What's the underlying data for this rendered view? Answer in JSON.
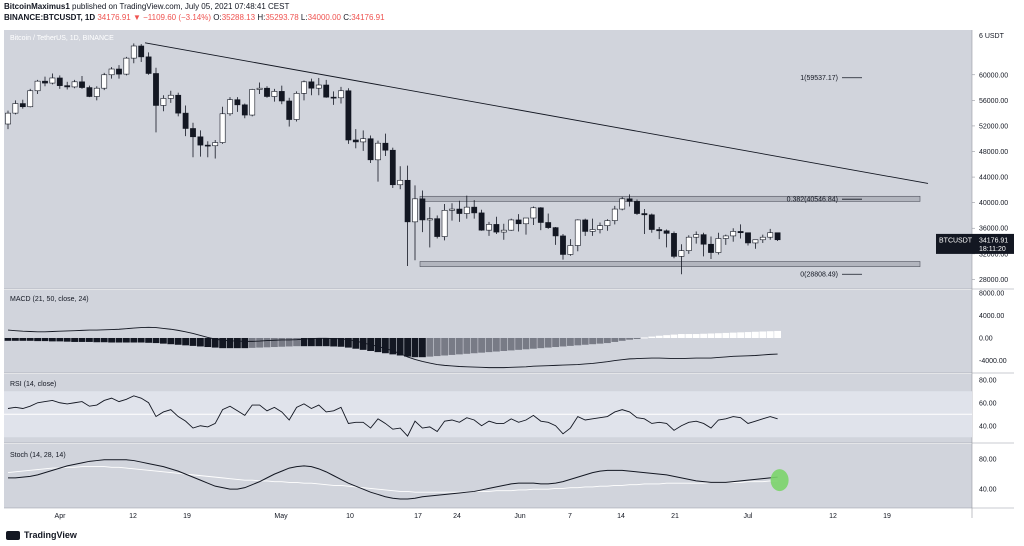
{
  "header": {
    "line1_user": "BitcoinMaximus1",
    "line1_rest": "published on TradingView.com, July 05, 2021 07:48:41 CEST",
    "line2_symbol": "BINANCE:BTCUSDT, 1D",
    "line2_price": "34176.91",
    "line2_change": "▼ −1109.60 (−3.14%)",
    "line2_ohlc_o": "O:",
    "line2_o": "35288.13",
    "line2_ohlc_h": "H:",
    "line2_h": "35293.78",
    "line2_ohlc_l": "L:",
    "line2_l": "34000.00",
    "line2_ohlc_c": "C:",
    "line2_c": "34176.91"
  },
  "footer": {
    "brand": "TradingView"
  },
  "chart_data": {
    "type": "candlestick",
    "title": "Bitcoin / TetherUS, 1D, BINANCE",
    "price_axis_unit_label": "6 USDT",
    "price_ticks": [
      60000,
      56000,
      52000,
      48000,
      44000,
      40000,
      36000,
      32000,
      28000
    ],
    "price_range": [
      26500,
      67000
    ],
    "x_labels": [
      "Apr",
      "12",
      "19",
      "May",
      "10",
      "17",
      "24",
      "Jun",
      "7",
      "14",
      "21",
      "Jul",
      "12",
      "19"
    ],
    "last_price_label": {
      "symbol": "BTCUSDT",
      "price": "34176.91",
      "timer": "18:11:20"
    },
    "fib_levels": [
      {
        "label": "1(59537.17)",
        "value": 59537.17
      },
      {
        "label": "0.382(40546.84)",
        "value": 40546.84
      },
      {
        "label": "0(28808.49)",
        "value": 28808.49
      }
    ],
    "resistance_zone": [
      40200,
      41000
    ],
    "support_zone": [
      30000,
      30800
    ],
    "descending_trendline": [
      [
        65000
      ],
      [
        43000
      ]
    ],
    "candles": [
      [
        52300,
        54400,
        51500,
        54000
      ],
      [
        54000,
        56000,
        53800,
        55500
      ],
      [
        55500,
        56100,
        54700,
        55000
      ],
      [
        55000,
        57800,
        54900,
        57500
      ],
      [
        57500,
        59200,
        57000,
        59000
      ],
      [
        59000,
        59700,
        58200,
        58700
      ],
      [
        58700,
        60200,
        58500,
        59500
      ],
      [
        59500,
        59900,
        57800,
        58300
      ],
      [
        58300,
        58900,
        57700,
        58100
      ],
      [
        58100,
        59200,
        57900,
        58900
      ],
      [
        58900,
        59800,
        57800,
        58000
      ],
      [
        58000,
        58300,
        56500,
        56600
      ],
      [
        56600,
        58200,
        56000,
        57900
      ],
      [
        57900,
        60300,
        57600,
        60000
      ],
      [
        60000,
        61200,
        59400,
        60900
      ],
      [
        60900,
        61500,
        59400,
        60100
      ],
      [
        60100,
        62800,
        59900,
        62600
      ],
      [
        62600,
        64900,
        61800,
        64500
      ],
      [
        64500,
        64800,
        62000,
        62800
      ],
      [
        62800,
        63500,
        60000,
        60200
      ],
      [
        60200,
        61100,
        51000,
        55200
      ],
      [
        55200,
        56800,
        54300,
        56300
      ],
      [
        56300,
        57500,
        55600,
        56800
      ],
      [
        56800,
        57200,
        53500,
        54000
      ],
      [
        54000,
        55200,
        50400,
        51600
      ],
      [
        51600,
        52500,
        47100,
        50300
      ],
      [
        50300,
        51300,
        47200,
        49000
      ],
      [
        49000,
        49600,
        47100,
        48900
      ],
      [
        48900,
        49800,
        46900,
        49400
      ],
      [
        49400,
        55000,
        49200,
        53900
      ],
      [
        53900,
        56500,
        53600,
        56100
      ],
      [
        56100,
        56500,
        54200,
        55300
      ],
      [
        55300,
        55500,
        53200,
        53700
      ],
      [
        53700,
        57800,
        53500,
        57700
      ],
      [
        57700,
        58800,
        57000,
        57900
      ],
      [
        57900,
        58200,
        56400,
        56600
      ],
      [
        56600,
        57800,
        55800,
        57400
      ],
      [
        57400,
        58300,
        55400,
        55900
      ],
      [
        55900,
        56400,
        51900,
        53000
      ],
      [
        53000,
        57400,
        52700,
        57100
      ],
      [
        57100,
        59100,
        56000,
        58900
      ],
      [
        58900,
        59400,
        56800,
        57900
      ],
      [
        57900,
        59500,
        56800,
        58400
      ],
      [
        58400,
        59200,
        56400,
        56500
      ],
      [
        56500,
        57400,
        55300,
        56400
      ],
      [
        56400,
        58100,
        55500,
        57500
      ],
      [
        57500,
        57900,
        49200,
        49800
      ],
      [
        49800,
        51500,
        48500,
        49500
      ],
      [
        49500,
        51300,
        48100,
        50000
      ],
      [
        50000,
        50500,
        46200,
        46700
      ],
      [
        46700,
        49700,
        43300,
        49300
      ],
      [
        49300,
        50800,
        47300,
        48200
      ],
      [
        48200,
        48600,
        42300,
        42800
      ],
      [
        42800,
        45700,
        42100,
        43500
      ],
      [
        43500,
        45800,
        30100,
        37000
      ],
      [
        37000,
        42700,
        31000,
        40600
      ],
      [
        40600,
        41900,
        35400,
        37300
      ],
      [
        37300,
        39300,
        33000,
        37500
      ],
      [
        37500,
        38000,
        34400,
        34700
      ],
      [
        34700,
        39800,
        34100,
        38800
      ],
      [
        38800,
        39900,
        37200,
        39000
      ],
      [
        39000,
        40300,
        37000,
        38300
      ],
      [
        38300,
        41100,
        37500,
        39300
      ],
      [
        39300,
        40400,
        37500,
        38400
      ],
      [
        38400,
        38900,
        35600,
        35700
      ],
      [
        35700,
        37000,
        34800,
        36600
      ],
      [
        36600,
        37800,
        35100,
        35400
      ],
      [
        35400,
        36700,
        34200,
        35700
      ],
      [
        35700,
        37500,
        35600,
        37300
      ],
      [
        37300,
        38200,
        35500,
        36700
      ],
      [
        36700,
        37500,
        35000,
        37600
      ],
      [
        37600,
        39400,
        36500,
        39200
      ],
      [
        39200,
        39300,
        35700,
        36900
      ],
      [
        36900,
        38300,
        35900,
        36100
      ],
      [
        36100,
        36200,
        33400,
        34800
      ],
      [
        34800,
        35100,
        31100,
        31900
      ],
      [
        31900,
        34300,
        31700,
        33300
      ],
      [
        33300,
        37400,
        32400,
        37300
      ],
      [
        37300,
        37500,
        34800,
        35500
      ],
      [
        35500,
        37500,
        34800,
        35800
      ],
      [
        35800,
        36900,
        35200,
        36400
      ],
      [
        36400,
        37400,
        35600,
        37200
      ],
      [
        37200,
        39500,
        36600,
        39000
      ],
      [
        39000,
        40900,
        38800,
        40600
      ],
      [
        40600,
        41300,
        39400,
        40200
      ],
      [
        40200,
        40500,
        38100,
        38300
      ],
      [
        38300,
        39000,
        35100,
        38100
      ],
      [
        38100,
        38300,
        35300,
        35800
      ],
      [
        35800,
        36200,
        34300,
        35600
      ],
      [
        35600,
        35800,
        33000,
        35200
      ],
      [
        35200,
        35500,
        31300,
        31600
      ],
      [
        31600,
        33500,
        28800,
        32500
      ],
      [
        32500,
        34900,
        32000,
        34600
      ],
      [
        34600,
        35500,
        33600,
        35000
      ],
      [
        35000,
        35300,
        31600,
        33500
      ],
      [
        33500,
        34700,
        31200,
        32200
      ],
      [
        32200,
        35300,
        31900,
        34400
      ],
      [
        34400,
        35000,
        33400,
        34800
      ],
      [
        34800,
        36000,
        33900,
        35500
      ],
      [
        35500,
        36600,
        34400,
        35300
      ],
      [
        35300,
        35300,
        33300,
        33700
      ],
      [
        33700,
        34200,
        32800,
        34200
      ],
      [
        34200,
        35000,
        33700,
        34600
      ],
      [
        34600,
        35900,
        34200,
        35300
      ],
      [
        35300,
        35300,
        34000,
        34200
      ]
    ],
    "macd": {
      "label": "MACD (21, 50, close, 24)",
      "ticks": [
        8000,
        4000,
        0,
        -4000
      ],
      "range": [
        -6200,
        8500
      ],
      "line": [
        1400,
        1300,
        1200,
        1150,
        1100,
        1100,
        1150,
        1200,
        1250,
        1300,
        1350,
        1400,
        1400,
        1450,
        1500,
        1550,
        1650,
        1750,
        1850,
        1900,
        1850,
        1700,
        1550,
        1350,
        1100,
        800,
        450,
        100,
        -200,
        -400,
        -500,
        -550,
        -600,
        -600,
        -550,
        -450,
        -400,
        -350,
        -350,
        -300,
        -200,
        -100,
        -50,
        -50,
        -100,
        -150,
        -300,
        -550,
        -850,
        -1200,
        -1500,
        -1850,
        -2300,
        -2750,
        -3350,
        -3800,
        -4150,
        -4450,
        -4700,
        -4850,
        -4950,
        -5050,
        -5100,
        -5150,
        -5200,
        -5250,
        -5250,
        -5250,
        -5200,
        -5150,
        -5100,
        -5000,
        -4950,
        -4900,
        -4850,
        -4800,
        -4750,
        -4700,
        -4600,
        -4500,
        -4350,
        -4200,
        -4000,
        -3850,
        -3700,
        -3650,
        -3600,
        -3550,
        -3550,
        -3600,
        -3650,
        -3650,
        -3600,
        -3550,
        -3550,
        -3550,
        -3450,
        -3350,
        -3250,
        -3200,
        -3150,
        -3100,
        -3000,
        -2900,
        -2850
      ],
      "histogram": [
        -500,
        -500,
        -500,
        -500,
        -550,
        -550,
        -600,
        -600,
        -650,
        -700,
        -700,
        -700,
        -750,
        -750,
        -800,
        -800,
        -800,
        -800,
        -800,
        -850,
        -900,
        -1000,
        -1100,
        -1200,
        -1300,
        -1400,
        -1500,
        -1600,
        -1700,
        -1800,
        -1800,
        -1800,
        -1800,
        -1750,
        -1700,
        -1650,
        -1600,
        -1550,
        -1500,
        -1450,
        -1450,
        -1450,
        -1450,
        -1450,
        -1500,
        -1550,
        -1700,
        -1900,
        -2100,
        -2300,
        -2500,
        -2700,
        -2900,
        -3100,
        -3300,
        -3400,
        -3400,
        -3300,
        -3200,
        -3100,
        -3000,
        -2900,
        -2800,
        -2700,
        -2600,
        -2500,
        -2400,
        -2300,
        -2200,
        -2100,
        -2000,
        -1900,
        -1800,
        -1700,
        -1600,
        -1500,
        -1400,
        -1300,
        -1200,
        -1100,
        -1000,
        -900,
        -700,
        -500,
        -300,
        -100,
        100,
        250,
        400,
        500,
        600,
        700,
        700,
        700,
        750,
        800,
        850,
        900,
        950,
        1000,
        1050,
        1100,
        1150,
        1200,
        1250
      ]
    },
    "rsi": {
      "label": "RSI (14, close)",
      "ticks": [
        80,
        60,
        40
      ],
      "range": [
        25,
        85
      ],
      "band": [
        30,
        70
      ],
      "midline": 50,
      "values": [
        55,
        56,
        55,
        57,
        60,
        61,
        62,
        60,
        59,
        60,
        61,
        57,
        58,
        62,
        64,
        61,
        63,
        66,
        64,
        60,
        48,
        52,
        54,
        48,
        44,
        38,
        40,
        39,
        42,
        54,
        57,
        53,
        49,
        58,
        58,
        53,
        56,
        52,
        45,
        56,
        59,
        55,
        58,
        52,
        53,
        56,
        42,
        43,
        43,
        38,
        46,
        42,
        37,
        38,
        31,
        44,
        38,
        39,
        35,
        44,
        45,
        43,
        47,
        45,
        40,
        44,
        42,
        42,
        46,
        43,
        45,
        49,
        44,
        43,
        40,
        33,
        38,
        48,
        45,
        46,
        47,
        48,
        52,
        54,
        52,
        47,
        46,
        42,
        43,
        42,
        36,
        40,
        43,
        44,
        42,
        38,
        45,
        46,
        48,
        47,
        42,
        44,
        46,
        48,
        46
      ]
    },
    "stoch": {
      "label": "Stoch (14, 28, 14)",
      "ticks": [
        80,
        40
      ],
      "range": [
        15,
        100
      ],
      "k": [
        55,
        55,
        56,
        57,
        59,
        62,
        65,
        68,
        71,
        73,
        75,
        77,
        78,
        79,
        79,
        79,
        79,
        78,
        76,
        74,
        72,
        70,
        67,
        64,
        60,
        56,
        52,
        48,
        44,
        42,
        40,
        40,
        42,
        46,
        50,
        55,
        60,
        64,
        68,
        70,
        71,
        70,
        67,
        63,
        58,
        53,
        48,
        44,
        40,
        36,
        33,
        30,
        28,
        27,
        27,
        28,
        30,
        31,
        32,
        33,
        34,
        35,
        36,
        37,
        39,
        41,
        43,
        45,
        47,
        48,
        48,
        48,
        47,
        47,
        48,
        50,
        53,
        56,
        59,
        62,
        64,
        65,
        65,
        65,
        64,
        63,
        62,
        61,
        60,
        59,
        57,
        55,
        53,
        51,
        50,
        49,
        49,
        49,
        50,
        51,
        52,
        53,
        54,
        55,
        56
      ],
      "d": [
        62,
        63,
        64,
        65,
        66,
        67,
        68,
        68,
        69,
        69,
        70,
        70,
        70,
        70,
        69,
        69,
        68,
        67,
        66,
        65,
        64,
        63,
        62,
        61,
        60,
        59,
        58,
        57,
        56,
        55,
        54,
        53,
        52,
        52,
        51,
        51,
        50,
        50,
        49,
        49,
        48,
        48,
        47,
        46,
        45,
        45,
        44,
        43,
        42,
        41,
        40,
        39,
        38,
        37,
        37,
        36,
        36,
        36,
        36,
        36,
        36,
        36,
        36,
        37,
        37,
        37,
        38,
        38,
        38,
        39,
        39,
        40,
        40,
        40,
        41,
        41,
        42,
        42,
        43,
        43,
        44,
        44,
        45,
        45,
        46,
        46,
        47,
        47,
        47,
        48,
        48,
        48,
        48,
        48,
        48,
        49,
        49,
        49,
        49,
        49,
        50,
        50,
        50,
        51,
        51
      ],
      "highlight_color": "#7bd46a"
    },
    "colors": {
      "background": "#d1d4dc",
      "up": "#ffffff",
      "down": "#131722",
      "line": "#131722",
      "band": "#b2b5be",
      "trendline": "#131722"
    }
  }
}
